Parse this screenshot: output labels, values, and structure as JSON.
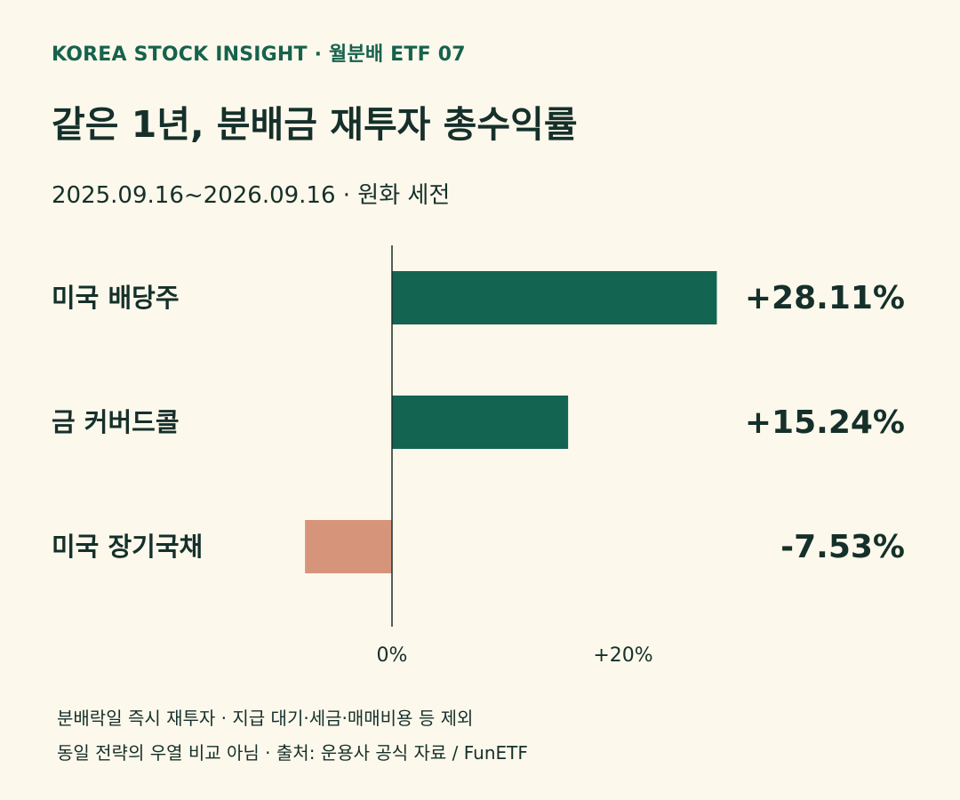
{
  "header": {
    "eyebrow": "KOREA STOCK INSIGHT · 월분배 ETF 07",
    "title": "같은 1년, 분배금 재투자 총수익률",
    "subtitle": "2025.09.16~2026.09.16 · 원화 세전"
  },
  "footnotes": [
    "분배락일 즉시 재투자 · 지급 대기·세금·매매비용 등 제외",
    "동일 전략의 우열 비교 아님 · 출처: 운용사 공식 자료 / FunETF"
  ],
  "colors": {
    "positive": "#136450",
    "negative": "#d6957b",
    "axis": "#15302a",
    "text": "#15302a"
  },
  "chart_data": {
    "type": "bar",
    "orientation": "horizontal",
    "categories": [
      "미국 배당주",
      "금 커버드콜",
      "미국 장기국채"
    ],
    "values": [
      28.11,
      15.24,
      -7.53
    ],
    "value_labels": [
      "+28.11%",
      "+15.24%",
      "-7.53%"
    ],
    "x_ticks": [
      {
        "value": 0,
        "label": "0%"
      },
      {
        "value": 20,
        "label": "+20%"
      }
    ],
    "xlim": [
      -7.53,
      28.11
    ],
    "grid": false,
    "legend": "none"
  }
}
